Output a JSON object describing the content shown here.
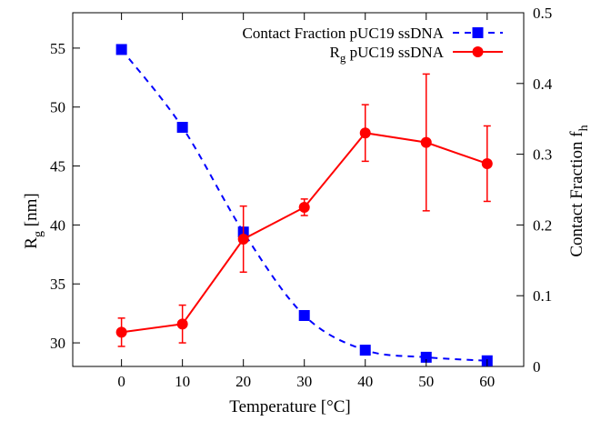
{
  "chart_data": {
    "type": "line",
    "x": [
      0,
      10,
      20,
      30,
      40,
      50,
      60
    ],
    "xlabel": "Temperature [°C]",
    "xlim": [
      -8,
      66
    ],
    "xticks": [
      "0",
      "10",
      "20",
      "30",
      "40",
      "50",
      "60"
    ],
    "ylabel_left": {
      "main": "R",
      "sub": "g",
      "rest": " [nm]"
    },
    "ylim_left": [
      28,
      58
    ],
    "yticks_left": [
      "30",
      "35",
      "40",
      "45",
      "50",
      "55"
    ],
    "ylabel_right": {
      "main": "Contact Fraction f",
      "sub": "h"
    },
    "ylim_right": [
      0,
      0.5
    ],
    "yticks_right": [
      "0",
      "0.1",
      "0.2",
      "0.3",
      "0.4",
      "0.5"
    ],
    "grid": false,
    "legend_position": "top-right",
    "series": [
      {
        "name": "Contact Fraction  pUC19 ssDNA",
        "legend_parts": {
          "main": "Contact Fraction  pUC19 ssDNA",
          "sub": "",
          "rest": ""
        },
        "axis": "right",
        "color": "#0000ff",
        "marker": "square",
        "line_style": "dashed",
        "smooth": true,
        "values": [
          0.448,
          0.338,
          0.19,
          0.072,
          0.023,
          0.013,
          0.008
        ],
        "errors": [
          0.006,
          0,
          0,
          0,
          0,
          0,
          0
        ]
      },
      {
        "name": "Rg pUC19 ssDNA",
        "legend_parts": {
          "main": "R",
          "sub": "g",
          "rest": " pUC19 ssDNA"
        },
        "axis": "left",
        "color": "#ff0000",
        "marker": "circle",
        "line_style": "solid",
        "smooth": false,
        "values": [
          30.9,
          31.6,
          38.8,
          41.5,
          47.8,
          47.0,
          45.2
        ],
        "errors": [
          1.2,
          1.6,
          2.8,
          0.7,
          2.4,
          5.8,
          3.2
        ]
      }
    ]
  }
}
